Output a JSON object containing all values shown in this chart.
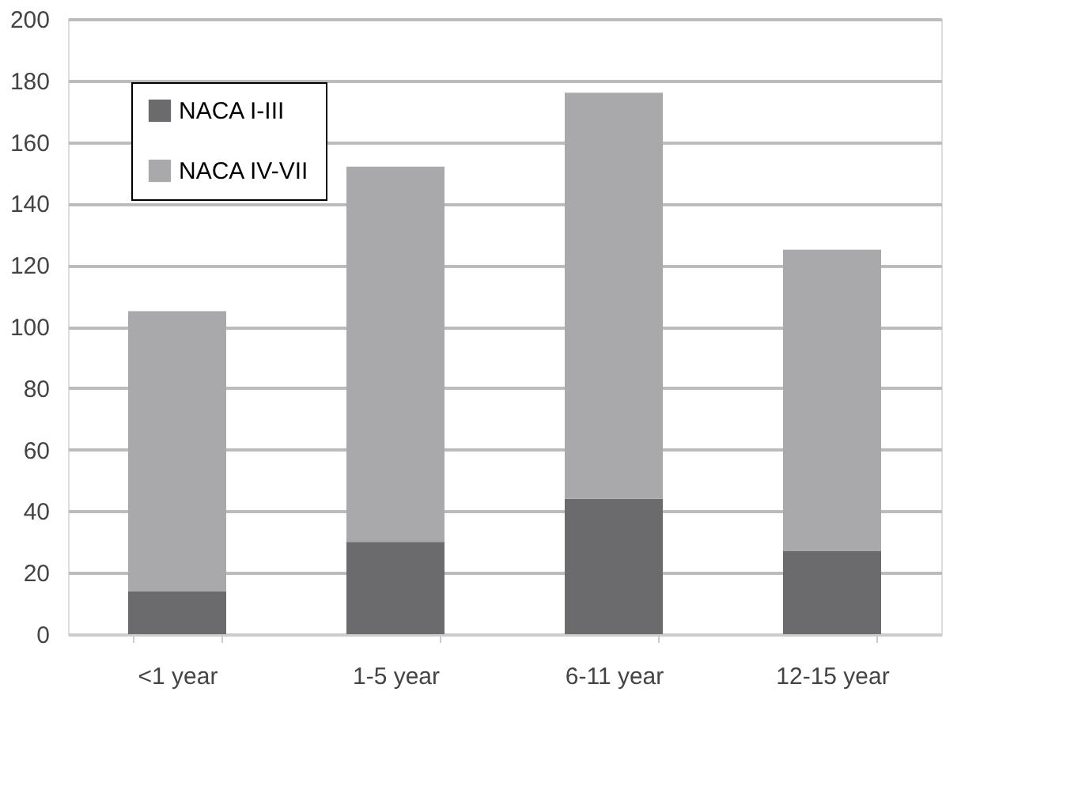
{
  "chart_data": {
    "type": "bar",
    "stacked": true,
    "categories": [
      "<1 year",
      "1-5 year",
      "6-11 year",
      "12-15 year"
    ],
    "series": [
      {
        "name": "NACA I-III",
        "color": "#6b6b6d",
        "values": [
          14,
          30,
          44,
          27
        ]
      },
      {
        "name": "NACA IV-VII",
        "color": "#a9a9ac",
        "values": [
          91,
          122,
          132,
          98
        ]
      }
    ],
    "ylim": [
      0,
      200
    ],
    "yticks": [
      0,
      20,
      40,
      60,
      80,
      100,
      120,
      140,
      160,
      180,
      200
    ],
    "grid": "y",
    "legend": "top left"
  }
}
